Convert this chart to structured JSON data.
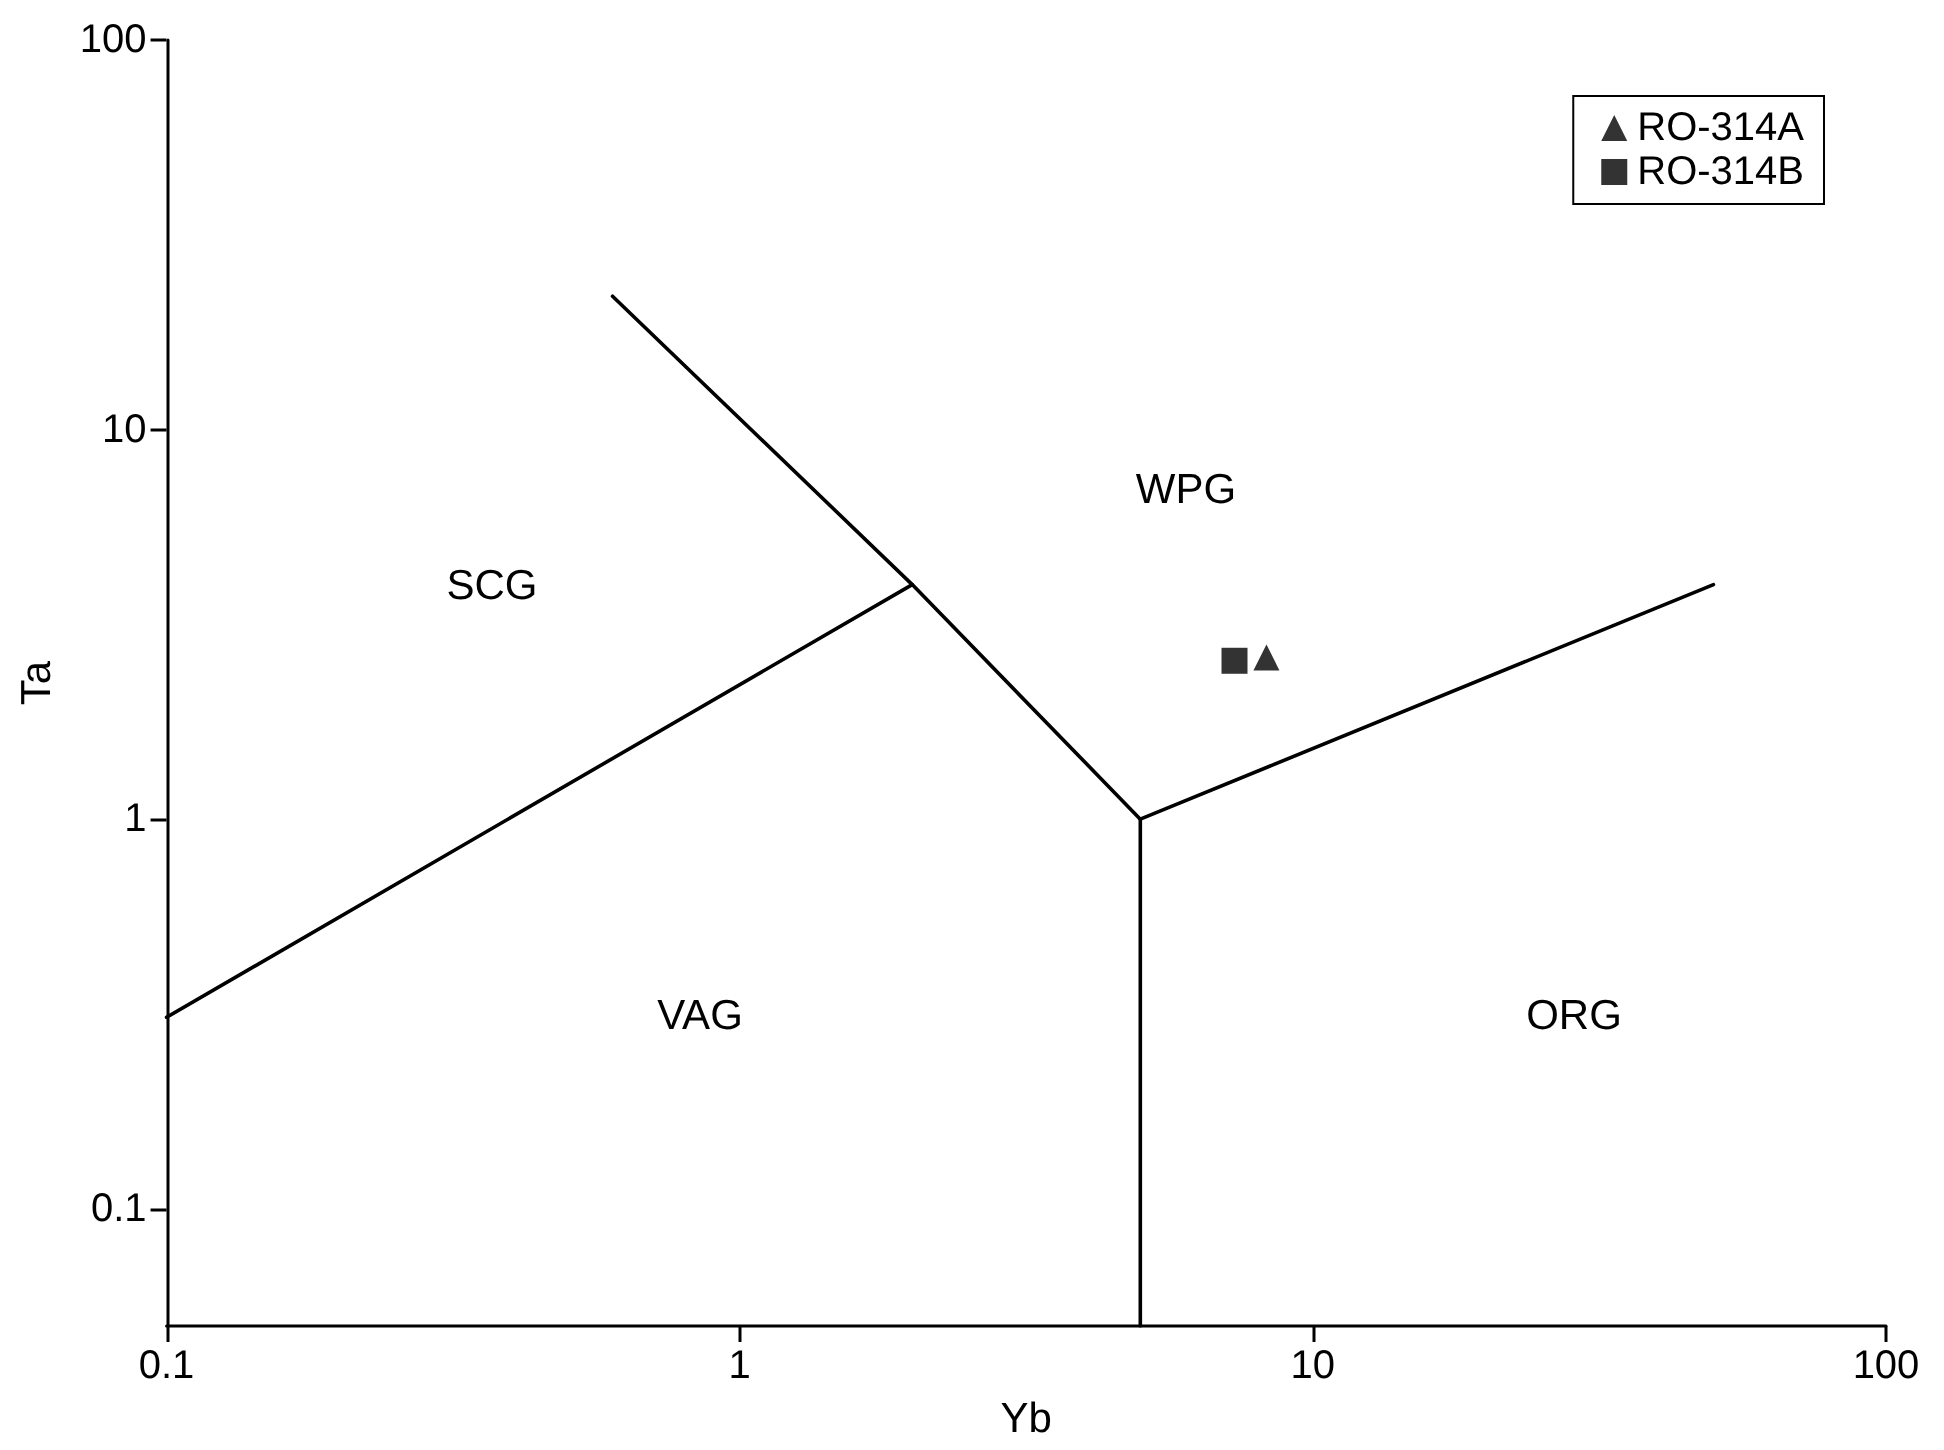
{
  "chart_data": {
    "type": "scatter",
    "xlabel": "Yb",
    "ylabel": "Ta",
    "log": "xy",
    "xlim": [
      0.1,
      100
    ],
    "xticks": [
      0.1,
      1,
      10,
      100
    ],
    "ylim": [
      0.05,
      100
    ],
    "yticks": [
      0.1,
      1,
      10,
      100
    ],
    "grid": false,
    "legend": "top right",
    "series": [
      {
        "type": "line",
        "color": "#000000",
        "marker": "none",
        "x": [
          0.1,
          2
        ],
        "values": [
          0.31,
          4
        ]
      },
      {
        "type": "line",
        "color": "#000000",
        "marker": "none",
        "x": [
          0.6,
          2,
          5
        ],
        "values": [
          22,
          4,
          1
        ]
      },
      {
        "type": "line",
        "color": "#000000",
        "marker": "none",
        "x": [
          5,
          5
        ],
        "values": [
          1,
          0.05
        ]
      },
      {
        "type": "line",
        "color": "#000000",
        "marker": "none",
        "x": [
          5,
          50
        ],
        "values": [
          1,
          4
        ]
      },
      {
        "name": "RO-314A",
        "color": "#000000",
        "marker": "triangle",
        "x": [
          8.3
        ],
        "values": [
          2.6
        ]
      },
      {
        "name": "RO-314B",
        "color": "#000000",
        "marker": "square",
        "x": [
          7.3
        ],
        "values": [
          2.55
        ]
      }
    ],
    "annotations": [
      "SCG",
      "WPG",
      "VAG",
      "ORG"
    ]
  }
}
